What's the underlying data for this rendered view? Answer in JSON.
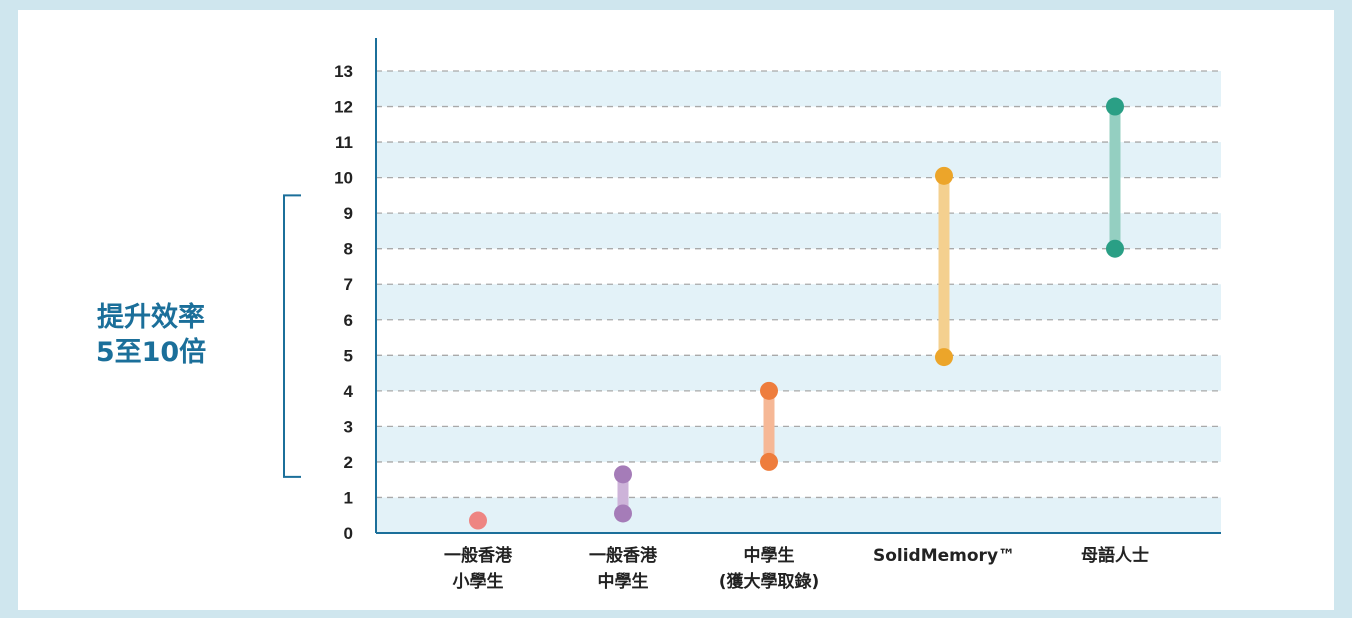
{
  "chart_data": {
    "type": "range",
    "ylim": [
      0,
      13
    ],
    "yticks": [
      0,
      1,
      2,
      3,
      4,
      5,
      6,
      7,
      8,
      9,
      10,
      11,
      12,
      13
    ],
    "grid": true,
    "categories": [
      {
        "lines": [
          "一般香港",
          "小學生"
        ],
        "low": 0.35,
        "high": 0.35,
        "color": "#ee8582",
        "bar_color": "#f4b5b3"
      },
      {
        "lines": [
          "一般香港",
          "中學生"
        ],
        "low": 0.55,
        "high": 1.65,
        "color": "#a57cb8",
        "bar_color": "#cdb3d9"
      },
      {
        "lines": [
          "中學生",
          "(獲大學取錄)"
        ],
        "low": 2,
        "high": 4,
        "color": "#ee7d3d",
        "bar_color": "#f6b896"
      },
      {
        "lines": [
          "SolidMemory™"
        ],
        "low": 4.95,
        "high": 10.05,
        "color": "#eca52a",
        "bar_color": "#f4d08f"
      },
      {
        "lines": [
          "母語人士"
        ],
        "low": 8,
        "high": 12,
        "color": "#2a9f85",
        "bar_color": "#94cfc1"
      }
    ],
    "bracket": {
      "from": 2,
      "to": 9.5,
      "color": "#1b6f9a"
    }
  },
  "callout": {
    "line1": "提升效率",
    "line2": "5至10倍"
  }
}
